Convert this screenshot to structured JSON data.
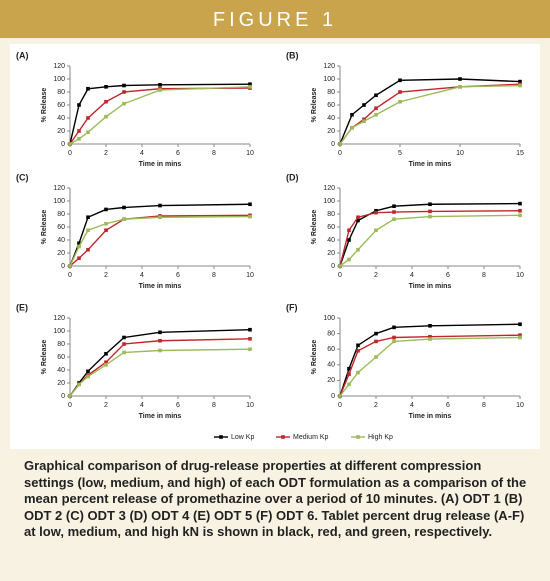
{
  "header": {
    "title": "FIGURE 1"
  },
  "caption": "Graphical comparison of drug-release properties at different compression settings (low, medium, and high) of each ODT formulation as a comparison of the mean percent release of promethazine over a period of 10 minutes. (A) ODT 1 (B) ODT 2 (C) ODT 3 (D) ODT 4 (E) ODT 5 (F) ODT 6. Tablet percent drug release (A-F) at low, medium, and high kN is shown in black, red, and green, respectively.",
  "chart_data": [
    {
      "type": "line",
      "title": "(A)",
      "x_label": "Time in mins",
      "y_label": "% Release",
      "x": [
        0,
        0.5,
        1,
        2,
        3,
        5,
        10
      ],
      "xlim": [
        0,
        10
      ],
      "xticks": [
        0,
        2,
        4,
        6,
        8,
        10
      ],
      "ylim": [
        0,
        120
      ],
      "yticks": [
        0,
        20,
        40,
        60,
        80,
        100,
        120
      ],
      "series": [
        {
          "name": "Low Kp",
          "color": "#000000",
          "values": [
            0,
            60,
            85,
            88,
            90,
            91,
            92
          ]
        },
        {
          "name": "Medium Kp",
          "color": "#c0272d",
          "values": [
            0,
            20,
            40,
            65,
            80,
            85,
            86
          ]
        },
        {
          "name": "High Kp",
          "color": "#9bbb59",
          "values": [
            0,
            8,
            18,
            42,
            62,
            83,
            88
          ]
        }
      ]
    },
    {
      "type": "line",
      "title": "(B)",
      "x_label": "Time in mins",
      "y_label": "% Release",
      "x": [
        0,
        1,
        2,
        3,
        5,
        10,
        15
      ],
      "xlim": [
        0,
        15
      ],
      "xticks": [
        0,
        5,
        10,
        15
      ],
      "ylim": [
        0,
        120
      ],
      "yticks": [
        0,
        20,
        40,
        60,
        80,
        100,
        120
      ],
      "series": [
        {
          "name": "Low Kp",
          "color": "#000000",
          "values": [
            0,
            45,
            60,
            75,
            98,
            100,
            96
          ]
        },
        {
          "name": "Medium Kp",
          "color": "#c0272d",
          "values": [
            0,
            25,
            38,
            55,
            80,
            88,
            92
          ]
        },
        {
          "name": "High Kp",
          "color": "#9bbb59",
          "values": [
            0,
            25,
            35,
            45,
            65,
            88,
            90
          ]
        }
      ]
    },
    {
      "type": "line",
      "title": "(C)",
      "x_label": "Time in mins",
      "y_label": "% Release",
      "x": [
        0,
        0.5,
        1,
        2,
        3,
        5,
        10
      ],
      "xlim": [
        0,
        10
      ],
      "xticks": [
        0,
        2,
        4,
        6,
        8,
        10
      ],
      "ylim": [
        0,
        120
      ],
      "yticks": [
        0,
        20,
        40,
        60,
        80,
        100,
        120
      ],
      "series": [
        {
          "name": "Low Kp",
          "color": "#000000",
          "values": [
            0,
            35,
            75,
            87,
            90,
            93,
            95
          ]
        },
        {
          "name": "Medium Kp",
          "color": "#c0272d",
          "values": [
            0,
            12,
            25,
            55,
            72,
            77,
            78
          ]
        },
        {
          "name": "High Kp",
          "color": "#9bbb59",
          "values": [
            0,
            30,
            55,
            65,
            72,
            75,
            76
          ]
        }
      ]
    },
    {
      "type": "line",
      "title": "(D)",
      "x_label": "Time in mins",
      "y_label": "% Release",
      "x": [
        0,
        0.5,
        1,
        2,
        3,
        5,
        10
      ],
      "xlim": [
        0,
        10
      ],
      "xticks": [
        0,
        2,
        4,
        6,
        8,
        10
      ],
      "ylim": [
        0,
        120
      ],
      "yticks": [
        0,
        20,
        40,
        60,
        80,
        100,
        120
      ],
      "series": [
        {
          "name": "Low Kp",
          "color": "#000000",
          "values": [
            0,
            40,
            70,
            85,
            92,
            95,
            96
          ]
        },
        {
          "name": "Medium Kp",
          "color": "#c0272d",
          "values": [
            0,
            55,
            75,
            82,
            83,
            84,
            85
          ]
        },
        {
          "name": "High Kp",
          "color": "#9bbb59",
          "values": [
            0,
            10,
            25,
            55,
            72,
            76,
            78
          ]
        }
      ]
    },
    {
      "type": "line",
      "title": "(E)",
      "x_label": "Time in mins",
      "y_label": "% Release",
      "x": [
        0,
        0.5,
        1,
        2,
        3,
        5,
        10
      ],
      "xlim": [
        0,
        10
      ],
      "xticks": [
        0,
        2,
        4,
        6,
        8,
        10
      ],
      "ylim": [
        0,
        120
      ],
      "yticks": [
        0,
        20,
        40,
        60,
        80,
        100,
        120
      ],
      "series": [
        {
          "name": "Low Kp",
          "color": "#000000",
          "values": [
            0,
            20,
            38,
            65,
            90,
            98,
            102
          ]
        },
        {
          "name": "Medium Kp",
          "color": "#c0272d",
          "values": [
            0,
            18,
            32,
            52,
            80,
            85,
            88
          ]
        },
        {
          "name": "High Kp",
          "color": "#9bbb59",
          "values": [
            0,
            18,
            30,
            48,
            67,
            70,
            72
          ]
        }
      ]
    },
    {
      "type": "line",
      "title": "(F)",
      "x_label": "Time in mins",
      "y_label": "% Release",
      "x": [
        0,
        0.5,
        1,
        2,
        3,
        5,
        10
      ],
      "xlim": [
        0,
        10
      ],
      "xticks": [
        0,
        2,
        4,
        6,
        8,
        10
      ],
      "ylim": [
        0,
        100
      ],
      "yticks": [
        0,
        20,
        40,
        60,
        80,
        100
      ],
      "series": [
        {
          "name": "Low Kp",
          "color": "#000000",
          "values": [
            0,
            35,
            65,
            80,
            88,
            90,
            92
          ]
        },
        {
          "name": "Medium Kp",
          "color": "#c0272d",
          "values": [
            0,
            28,
            58,
            70,
            75,
            76,
            78
          ]
        },
        {
          "name": "High Kp",
          "color": "#9bbb59",
          "values": [
            0,
            15,
            30,
            50,
            70,
            73,
            75
          ]
        }
      ]
    }
  ]
}
